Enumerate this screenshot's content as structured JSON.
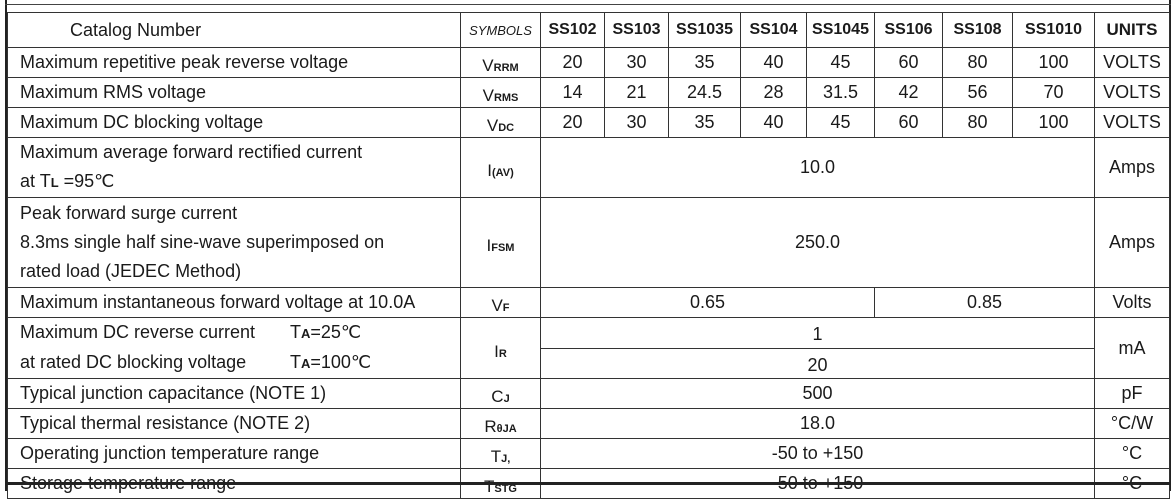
{
  "header": {
    "label": "Catalog  Number",
    "symbols": "SYMBOLS",
    "parts": [
      "SS102",
      "SS103",
      "SS1035",
      "SS104",
      "SS1045",
      "SS106",
      "SS108",
      "SS1010"
    ],
    "units": "UNITS"
  },
  "rows": [
    {
      "label": "Maximum repetitive peak reverse voltage",
      "sym": {
        "main": "V",
        "sub": "RRM"
      },
      "values": [
        "20",
        "30",
        "35",
        "40",
        "45",
        "60",
        "80",
        "100"
      ],
      "unit": "VOLTS"
    },
    {
      "label": "Maximum RMS voltage",
      "sym": {
        "main": "V",
        "sub": "RMS"
      },
      "values": [
        "14",
        "21",
        "24.5",
        "28",
        "31.5",
        "42",
        "56",
        "70"
      ],
      "unit": "VOLTS"
    },
    {
      "label": "Maximum DC blocking voltage",
      "sym": {
        "main": "V",
        "sub": "DC"
      },
      "values": [
        "20",
        "30",
        "35",
        "40",
        "45",
        "60",
        "80",
        "100"
      ],
      "unit": "VOLTS"
    },
    {
      "label_lines": [
        "Maximum average forward rectified current",
        "at T"
      ],
      "label_sub": "L",
      "label_tail": " =95℃",
      "sym": {
        "main": "I",
        "sub": "(AV)"
      },
      "value": "10.0",
      "unit": "Amps"
    },
    {
      "label_lines": [
        "Peak forward surge current",
        "8.3ms single half sine-wave superimposed on",
        "rated load (JEDEC Method)"
      ],
      "sym": {
        "main": "I",
        "sub": "FSM"
      },
      "value": "250.0",
      "unit": "Amps"
    },
    {
      "label": "Maximum instantaneous forward voltage at 10.0A",
      "sym": {
        "main": "V",
        "sub": "F"
      },
      "values": [
        "0.65",
        "0.85"
      ],
      "unit": "Volts"
    },
    {
      "label_lines": [
        "Maximum DC reverse current",
        "at rated DC blocking voltage"
      ],
      "conds": [
        {
          "main": "T",
          "sub": "A",
          "tail": "=25℃"
        },
        {
          "main": "T",
          "sub": "A",
          "tail": "=100℃"
        }
      ],
      "sym": {
        "main": "I",
        "sub": "R"
      },
      "values": [
        "1",
        "20"
      ],
      "unit": "mA"
    },
    {
      "label": "Typical junction capacitance (NOTE 1)",
      "sym": {
        "main": "C",
        "sub": "J"
      },
      "value": "500",
      "unit": "pF"
    },
    {
      "label": "Typical thermal resistance (NOTE 2)",
      "sym": {
        "main": "R",
        "sub": "θJA"
      },
      "value": "18.0",
      "unit": "°C/W"
    },
    {
      "label": "Operating junction temperature range",
      "sym": {
        "main": "T",
        "sub": "J,"
      },
      "value": "-50 to +150",
      "unit": "°C"
    },
    {
      "label": "Storage temperature range",
      "sym": {
        "main": "T",
        "sub": "STG"
      },
      "value": "-50 to +150",
      "unit": "°C"
    }
  ]
}
